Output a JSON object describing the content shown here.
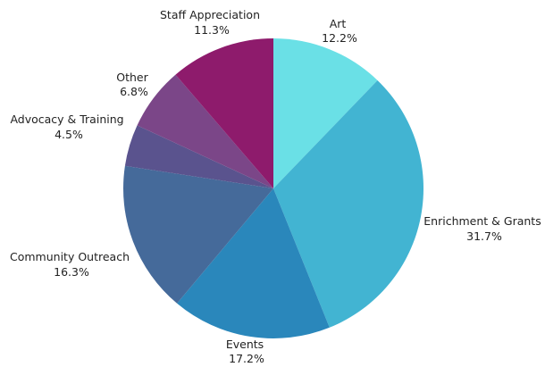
{
  "chart_data": {
    "type": "pie",
    "start_angle_deg": 0,
    "direction": "clockwise",
    "slices": [
      {
        "label": "Art",
        "value": 12.2,
        "value_label": "12.2%",
        "color": "#6ae0e6"
      },
      {
        "label": "Enrichment & Grants",
        "value": 31.7,
        "value_label": "31.7%",
        "color": "#42b4d2"
      },
      {
        "label": "Events",
        "value": 17.2,
        "value_label": "17.2%",
        "color": "#2a87bb"
      },
      {
        "label": "Community Outreach",
        "value": 16.3,
        "value_label": "16.3%",
        "color": "#456a9a"
      },
      {
        "label": "Advocacy & Training",
        "value": 4.5,
        "value_label": "4.5%",
        "color": "#5a538e"
      },
      {
        "label": "Other",
        "value": 6.8,
        "value_label": "6.8%",
        "color": "#7b4688"
      },
      {
        "label": "Staff Appreciation",
        "value": 11.3,
        "value_label": "11.3%",
        "color": "#8e1b6c"
      }
    ]
  }
}
